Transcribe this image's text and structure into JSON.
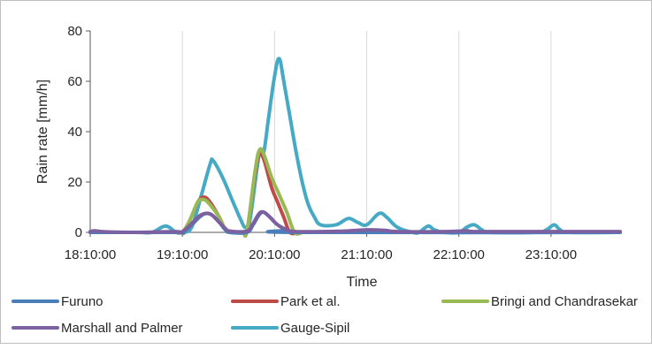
{
  "chart_data": {
    "type": "line",
    "title": "",
    "xlabel": "Time",
    "ylabel": "Rain rate [mm/h]",
    "ylim": [
      0,
      80
    ],
    "yticks": [
      "0",
      "20",
      "40",
      "60",
      "80"
    ],
    "xticks": [
      "18:10:00",
      "19:10:00",
      "20:10:00",
      "21:10:00",
      "22:10:00",
      "23:10:00"
    ],
    "x_unit": "minutes after 18:10:00",
    "grid": "vertical",
    "legend_position": "bottom",
    "colors": {
      "Furuno": "#4a7ebb",
      "Park et al.": "#be4b48",
      "Bringi and Chandrasekar": "#98b954",
      "Marshall and Palmer": "#7d60a0",
      "Gauge-Sipil": "#46aac5"
    },
    "series": [
      {
        "name": "Gauge-Sipil",
        "points": [
          [
            0,
            0
          ],
          [
            30,
            0
          ],
          [
            40,
            0
          ],
          [
            49,
            2.5
          ],
          [
            56,
            0
          ],
          [
            60,
            0
          ],
          [
            66,
            2
          ],
          [
            72,
            14
          ],
          [
            78,
            27
          ],
          [
            80,
            28.5
          ],
          [
            86,
            22
          ],
          [
            93,
            12
          ],
          [
            98,
            5
          ],
          [
            101,
            2
          ],
          [
            104,
            5
          ],
          [
            110,
            31
          ],
          [
            113,
            32
          ],
          [
            116,
            45
          ],
          [
            120,
            62
          ],
          [
            123,
            69
          ],
          [
            126,
            60
          ],
          [
            130,
            46
          ],
          [
            134,
            32
          ],
          [
            138,
            20
          ],
          [
            142,
            11
          ],
          [
            146,
            6
          ],
          [
            150,
            3
          ],
          [
            160,
            3
          ],
          [
            168,
            5.5
          ],
          [
            174,
            4
          ],
          [
            180,
            3
          ],
          [
            188,
            7.5
          ],
          [
            193,
            6
          ],
          [
            200,
            2
          ],
          [
            210,
            0
          ],
          [
            214,
            0
          ],
          [
            220,
            2.5
          ],
          [
            224,
            1
          ],
          [
            230,
            0
          ],
          [
            240,
            0
          ],
          [
            245,
            2
          ],
          [
            250,
            3
          ],
          [
            255,
            1
          ],
          [
            260,
            0
          ],
          [
            290,
            0
          ],
          [
            297,
            1
          ],
          [
            302,
            3
          ],
          [
            306,
            1
          ],
          [
            312,
            0
          ],
          [
            345,
            0
          ]
        ]
      },
      {
        "name": "Park et al.",
        "points": [
          [
            0,
            0
          ],
          [
            55,
            0
          ],
          [
            60,
            0
          ],
          [
            65,
            5
          ],
          [
            70,
            12
          ],
          [
            74,
            14
          ],
          [
            78,
            12
          ],
          [
            84,
            6
          ],
          [
            88,
            1
          ],
          [
            91,
            0
          ],
          [
            99,
            0
          ],
          [
            102,
            0.5
          ],
          [
            107,
            22
          ],
          [
            110,
            31
          ],
          [
            113,
            29
          ],
          [
            118,
            18
          ],
          [
            122,
            12
          ],
          [
            126,
            6
          ],
          [
            130,
            0
          ],
          [
            135,
            0
          ]
        ]
      },
      {
        "name": "Bringi and Chandrasekar",
        "points": [
          [
            0,
            0
          ],
          [
            55,
            0
          ],
          [
            60,
            0
          ],
          [
            65,
            5
          ],
          [
            70,
            12
          ],
          [
            74,
            13
          ],
          [
            78,
            11
          ],
          [
            84,
            6
          ],
          [
            88,
            1
          ],
          [
            91,
            0
          ],
          [
            99,
            0
          ],
          [
            102,
            0.5
          ],
          [
            107,
            23
          ],
          [
            110,
            32.5
          ],
          [
            113,
            31
          ],
          [
            118,
            22
          ],
          [
            123,
            15
          ],
          [
            128,
            8
          ],
          [
            133,
            0
          ],
          [
            138,
            0
          ]
        ]
      },
      {
        "name": "Furuno",
        "points": [
          [
            0,
            0
          ],
          [
            55,
            0
          ],
          [
            60,
            0
          ],
          [
            66,
            3
          ],
          [
            71,
            6
          ],
          [
            75,
            7.5
          ],
          [
            79,
            7
          ],
          [
            84,
            4
          ],
          [
            88,
            1
          ],
          [
            91,
            0
          ],
          [
            102,
            0
          ],
          [
            106,
            3
          ],
          [
            110,
            7
          ],
          [
            113,
            8
          ],
          [
            117,
            6
          ],
          [
            122,
            3
          ],
          [
            128,
            1
          ],
          [
            134,
            0
          ],
          [
            345,
            0
          ]
        ]
      },
      {
        "name": "Marshall and Palmer",
        "points": [
          [
            0,
            0.3
          ],
          [
            3,
            0.6
          ],
          [
            10,
            0.2
          ],
          [
            30,
            0
          ],
          [
            55,
            0.3
          ],
          [
            60,
            0.3
          ],
          [
            66,
            3.5
          ],
          [
            71,
            6.5
          ],
          [
            75,
            7.5
          ],
          [
            79,
            7
          ],
          [
            84,
            4
          ],
          [
            88,
            1.5
          ],
          [
            91,
            0.5
          ],
          [
            102,
            0.5
          ],
          [
            106,
            3.5
          ],
          [
            110,
            7.5
          ],
          [
            113,
            8
          ],
          [
            117,
            6
          ],
          [
            122,
            3
          ],
          [
            128,
            1
          ],
          [
            134,
            0.3
          ],
          [
            150,
            0.3
          ],
          [
            165,
            0.5
          ],
          [
            180,
            1
          ],
          [
            192,
            0.8
          ],
          [
            200,
            0.3
          ],
          [
            230,
            0.3
          ],
          [
            245,
            0.6
          ],
          [
            252,
            0.3
          ],
          [
            300,
            0.3
          ],
          [
            345,
            0.3
          ]
        ]
      }
    ],
    "legend": [
      {
        "name": "Furuno",
        "row": 1
      },
      {
        "name": "Park et al.",
        "row": 1
      },
      {
        "name": "Bringi and Chandrasekar",
        "row": 1
      },
      {
        "name": "Marshall and Palmer",
        "row": 2
      },
      {
        "name": "Gauge-Sipil",
        "row": 2
      }
    ]
  }
}
